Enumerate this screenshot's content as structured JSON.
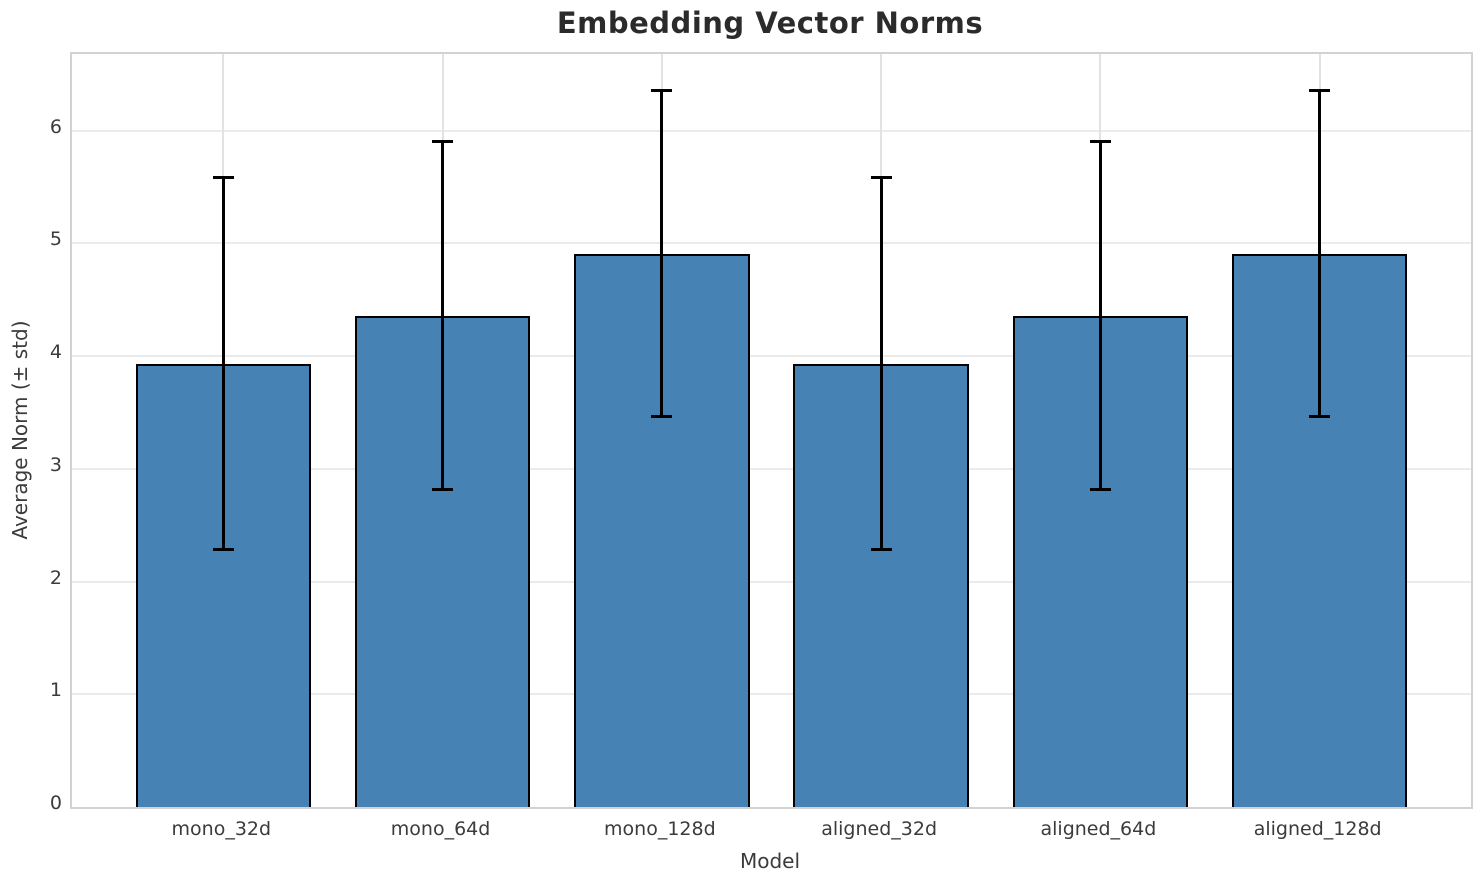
{
  "title": "Embedding Vector Norms",
  "chart_data": {
    "type": "bar",
    "title": "Embedding Vector Norms",
    "xlabel": "Model",
    "ylabel": "Average Norm (± std)",
    "categories": [
      "mono_32d",
      "mono_64d",
      "mono_128d",
      "aligned_32d",
      "aligned_64d",
      "aligned_128d"
    ],
    "series": [
      {
        "name": "Average Norm",
        "values": [
          3.93,
          4.36,
          4.91,
          3.93,
          4.36,
          4.91
        ],
        "std": [
          1.65,
          1.54,
          1.45,
          1.65,
          1.54,
          1.45
        ],
        "error_low": [
          2.28,
          2.82,
          3.46,
          2.28,
          2.82,
          3.46
        ],
        "error_high": [
          5.58,
          5.9,
          6.36,
          5.58,
          5.9,
          6.36
        ]
      }
    ],
    "yticks": [
      0,
      1,
      2,
      3,
      4,
      5,
      6
    ],
    "ylim": [
      0,
      6.68
    ],
    "xlim_units": [
      -0.69,
      5.69
    ],
    "bar_width_units": 0.8,
    "grid": true,
    "legend_position": "none",
    "bar_color": "#4682b4",
    "bar_edge_color": "#000000",
    "error_color": "#000000",
    "grid_color": "#ebebeb",
    "background_color": "#ffffff"
  }
}
